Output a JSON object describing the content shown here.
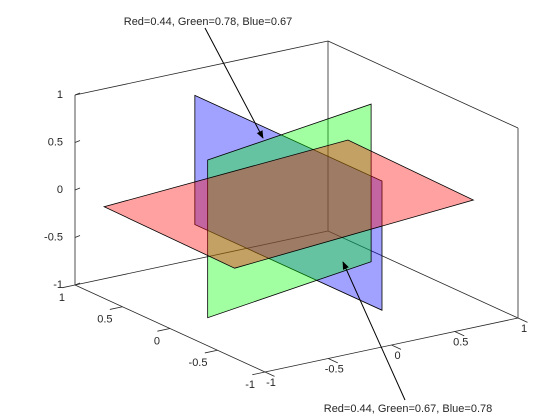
{
  "chart_data": {
    "type": "planes3d",
    "annotations": [
      {
        "text": "Red=0.44, Green=0.78, Blue=0.67"
      },
      {
        "text": "Red=0.44, Green=0.67, Blue=0.78"
      }
    ],
    "xlim": [
      -1,
      1
    ],
    "ylim": [
      -1,
      1
    ],
    "zlim": [
      -1,
      1
    ],
    "xticks": [
      -1,
      -0.5,
      0,
      0.5,
      1
    ],
    "yticks": [
      -1,
      -0.5,
      0,
      0.5,
      1
    ],
    "zticks": [
      -1,
      -0.5,
      0,
      0.5,
      1
    ],
    "face_alpha": 0.37,
    "planes": [
      {
        "color": "#0000ff",
        "corners": [
          [
            0,
            1.07,
            0.68
          ],
          [
            0,
            -0.9,
            0.68
          ],
          [
            0,
            -0.9,
            -0.68
          ],
          [
            0,
            1.07,
            -0.68
          ]
        ]
      },
      {
        "color": "#00ff00",
        "corners": [
          [
            -0.86,
            -0.21,
            0.83
          ],
          [
            0.68,
            0.12,
            0.83
          ],
          [
            0.68,
            0.12,
            -0.83
          ],
          [
            -0.86,
            -0.21,
            -0.83
          ]
        ]
      },
      {
        "color": "#ff0000",
        "corners": [
          [
            -1.06,
            -0.76,
            0
          ],
          [
            1.03,
            -0.49,
            0
          ],
          [
            1.06,
            0.87,
            0
          ],
          [
            -1.04,
            0.64,
            0
          ]
        ]
      }
    ]
  }
}
